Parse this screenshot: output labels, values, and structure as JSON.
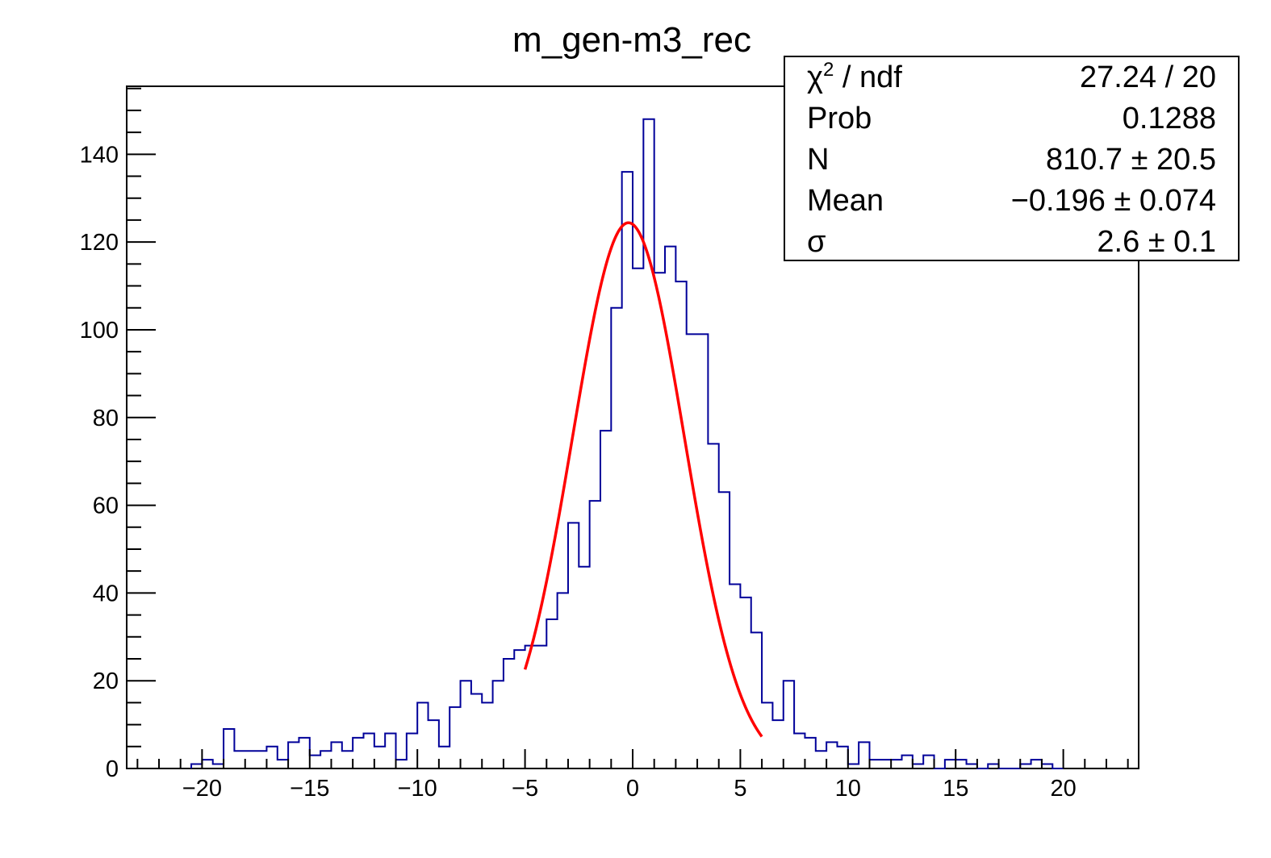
{
  "chart_data": {
    "type": "bar",
    "title": "m_gen-m3_rec",
    "xlabel": "",
    "ylabel": "",
    "xlim": [
      -23.5,
      23.5
    ],
    "ylim": [
      0,
      155.5
    ],
    "x_ticks": [
      -20,
      -15,
      -10,
      -5,
      0,
      5,
      10,
      15,
      20
    ],
    "x_tick_labels": [
      "−20",
      "−15",
      "−10",
      "−5",
      "0",
      "5",
      "10",
      "15",
      "20"
    ],
    "y_ticks": [
      0,
      20,
      40,
      60,
      80,
      100,
      120,
      140
    ],
    "y_tick_labels": [
      "0",
      "20",
      "40",
      "60",
      "80",
      "100",
      "120",
      "140"
    ],
    "grid": false,
    "legend": "none",
    "bin_width": 0.5,
    "x": [
      -20.25,
      -19.75,
      -19.25,
      -18.75,
      -18.25,
      -17.75,
      -17.25,
      -16.75,
      -16.25,
      -15.75,
      -15.25,
      -14.75,
      -14.25,
      -13.75,
      -13.25,
      -12.75,
      -12.25,
      -11.75,
      -11.25,
      -10.75,
      -10.25,
      -9.75,
      -9.25,
      -8.75,
      -8.25,
      -7.75,
      -7.25,
      -6.75,
      -6.25,
      -5.75,
      -5.25,
      -4.75,
      -4.25,
      -3.75,
      -3.25,
      -2.75,
      -2.25,
      -1.75,
      -1.25,
      -0.75,
      -0.25,
      0.25,
      0.75,
      1.25,
      1.75,
      2.25,
      2.75,
      3.25,
      3.75,
      4.25,
      4.75,
      5.25,
      5.75,
      6.25,
      6.75,
      7.25,
      7.75,
      8.25,
      8.75,
      9.25,
      9.75,
      10.25,
      10.75,
      11.25,
      11.75,
      12.25,
      12.75,
      13.25,
      13.75,
      14.25,
      14.75,
      15.25,
      15.75,
      16.25,
      16.75,
      17.25,
      17.75,
      18.25,
      18.75,
      19.25,
      19.75
    ],
    "values": [
      1,
      2,
      1,
      9,
      4,
      4,
      4,
      5,
      2,
      6,
      7,
      3,
      4,
      6,
      4,
      7,
      8,
      5,
      8,
      2,
      8,
      15,
      11,
      5,
      14,
      20,
      17,
      15,
      20,
      25,
      27,
      28,
      28,
      34,
      40,
      56,
      46,
      61,
      77,
      105,
      136,
      114,
      148,
      113,
      119,
      111,
      99,
      99,
      74,
      63,
      42,
      39,
      31,
      15,
      11,
      20,
      8,
      7,
      4,
      6,
      5,
      1,
      6,
      2,
      2,
      2,
      3,
      1,
      3,
      0,
      2,
      2,
      1,
      0,
      1,
      0,
      0,
      1,
      2,
      1,
      0
    ],
    "fit": {
      "function": "gaus",
      "x_range": [
        -5.0,
        6.0
      ],
      "constant": 124.4,
      "mean": -0.196,
      "sigma": 2.6,
      "color": "#ff0000"
    },
    "histogram_color": "#000099",
    "stats_box": [
      {
        "label_base": "χ",
        "label_sup": "2",
        "label_rest": " / ndf",
        "value": "27.24 / 20"
      },
      {
        "label_base": "Prob",
        "label_sup": "",
        "label_rest": "",
        "value": "0.1288"
      },
      {
        "label_base": "N",
        "label_sup": "",
        "label_rest": "",
        "value": "810.7 ± 20.5"
      },
      {
        "label_base": "Mean",
        "label_sup": "",
        "label_rest": "",
        "value": "−0.196 ± 0.074"
      },
      {
        "label_base": "σ",
        "label_sup": "",
        "label_rest": "",
        "value": "2.6 ± 0.1"
      }
    ]
  }
}
